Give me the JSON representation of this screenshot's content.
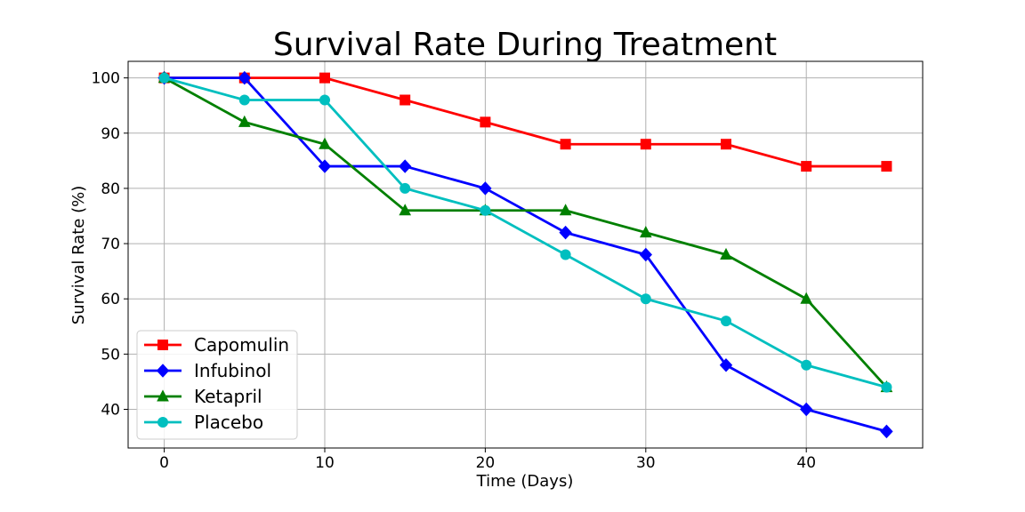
{
  "chart_data": {
    "type": "line",
    "title": "Survival Rate During Treatment",
    "xlabel": "Time (Days)",
    "ylabel": "Survival Rate (%)",
    "x": [
      0,
      5,
      10,
      15,
      20,
      25,
      30,
      35,
      40,
      45
    ],
    "xlim": [
      -2.25,
      47.25
    ],
    "ylim": [
      33,
      103
    ],
    "xticks": [
      0,
      10,
      20,
      30,
      40
    ],
    "yticks": [
      40,
      50,
      60,
      70,
      80,
      90,
      100
    ],
    "grid": true,
    "legend_position": "lower-left",
    "series": [
      {
        "name": "Capomulin",
        "color": "#ff0000",
        "marker": "square",
        "values": [
          100,
          100,
          100,
          96,
          92,
          88,
          88,
          88,
          84,
          84
        ]
      },
      {
        "name": "Infubinol",
        "color": "#0000ff",
        "marker": "diamond",
        "values": [
          100,
          100,
          84,
          84,
          80,
          72,
          68,
          48,
          40,
          36
        ]
      },
      {
        "name": "Ketapril",
        "color": "#008000",
        "marker": "triangle",
        "values": [
          100,
          92,
          88,
          76,
          76,
          76,
          72,
          68,
          60,
          44
        ]
      },
      {
        "name": "Placebo",
        "color": "#00bfbf",
        "marker": "circle",
        "values": [
          100,
          96,
          96,
          80,
          76,
          68,
          60,
          56,
          48,
          44
        ]
      }
    ]
  }
}
